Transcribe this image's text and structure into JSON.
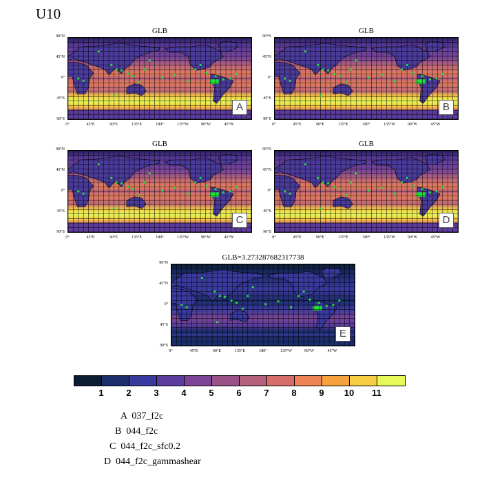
{
  "title": "U10",
  "panels": [
    {
      "title": "GLB",
      "letter": "A"
    },
    {
      "title": "GLB",
      "letter": "B"
    },
    {
      "title": "GLB",
      "letter": "C"
    },
    {
      "title": "GLB",
      "letter": "D"
    },
    {
      "title": "GLB=3.273287682317738",
      "letter": "E"
    }
  ],
  "axes": {
    "y_ticks": [
      "90°N",
      "45°N",
      "0°",
      "45°S",
      "90°S"
    ],
    "x_ticks": [
      "0°",
      "45°E",
      "90°E",
      "135°E",
      "180°",
      "135°W",
      "90°W",
      "45°W"
    ]
  },
  "colorbar": {
    "colors": [
      "#0b1d33",
      "#1c2d6b",
      "#3a3a9e",
      "#5b3c9c",
      "#7b4697",
      "#985288",
      "#b45f7c",
      "#d76d6b",
      "#ee8456",
      "#f6a33e",
      "#f4cd43",
      "#e6f85a"
    ],
    "labels": [
      "1",
      "2",
      "3",
      "4",
      "5",
      "6",
      "7",
      "8",
      "9",
      "10",
      "11"
    ]
  },
  "legend": [
    {
      "letter": "A",
      "text": "037_f2c"
    },
    {
      "letter": "B",
      "text": "044_f2c"
    },
    {
      "letter": "C",
      "text": "044_f2c_sfc0.2"
    },
    {
      "letter": "D",
      "text": "044_f2c_gammashear"
    }
  ],
  "chart_data": {
    "type": "heatmap",
    "variable": "U10",
    "map_projection": "global lat-lon, 0° to 360°",
    "contour_levels": [
      1,
      2,
      3,
      4,
      5,
      6,
      7,
      8,
      9,
      10,
      11
    ],
    "panels": [
      {
        "letter": "A",
        "title": "GLB",
        "legend": "037_f2c"
      },
      {
        "letter": "B",
        "title": "GLB",
        "legend": "044_f2c"
      },
      {
        "letter": "C",
        "title": "GLB",
        "legend": "044_f2c_sfc0.2"
      },
      {
        "letter": "D",
        "title": "GLB",
        "legend": "044_f2c_gammashear"
      },
      {
        "letter": "E",
        "title": "GLB=3.273287682317738",
        "global_mean": 3.273287682317738
      }
    ],
    "grid": true,
    "observation_markers": "green dots"
  }
}
